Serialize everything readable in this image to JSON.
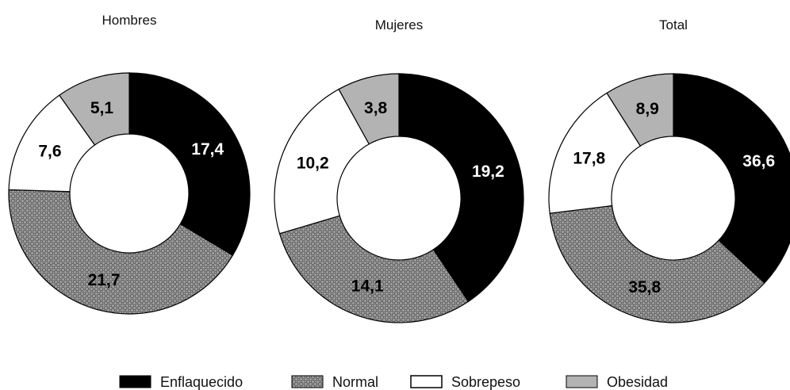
{
  "chart_data": [
    {
      "type": "pie",
      "title": "Hombres",
      "categories": [
        "Enflaquecido",
        "Normal",
        "Sobrepeso",
        "Obesidad"
      ],
      "values": [
        17.4,
        21.7,
        7.6,
        5.1
      ],
      "labels": [
        "17,4",
        "21,7",
        "7,6",
        "5,1"
      ]
    },
    {
      "type": "pie",
      "title": "Mujeres",
      "categories": [
        "Enflaquecido",
        "Normal",
        "Sobrepeso",
        "Obesidad"
      ],
      "values": [
        19.2,
        14.1,
        10.2,
        3.8
      ],
      "labels": [
        "19,2",
        "14,1",
        "10,2",
        "3,8"
      ]
    },
    {
      "type": "pie",
      "title": "Total",
      "categories": [
        "Enflaquecido",
        "Normal",
        "Sobrepeso",
        "Obesidad"
      ],
      "values": [
        36.6,
        35.8,
        17.8,
        8.9
      ],
      "labels": [
        "36,6",
        "35,8",
        "17,8",
        "8,9"
      ]
    }
  ],
  "legend": {
    "position": "bottom",
    "items": [
      {
        "label": "Enflaquecido",
        "fill": "solid",
        "color": "#000000"
      },
      {
        "label": "Normal",
        "fill": "checkered",
        "color": "#8a8a8a"
      },
      {
        "label": "Sobrepeso",
        "fill": "solid",
        "color": "#ffffff"
      },
      {
        "label": "Obesidad",
        "fill": "solid",
        "color": "#b3b3b3"
      }
    ]
  }
}
